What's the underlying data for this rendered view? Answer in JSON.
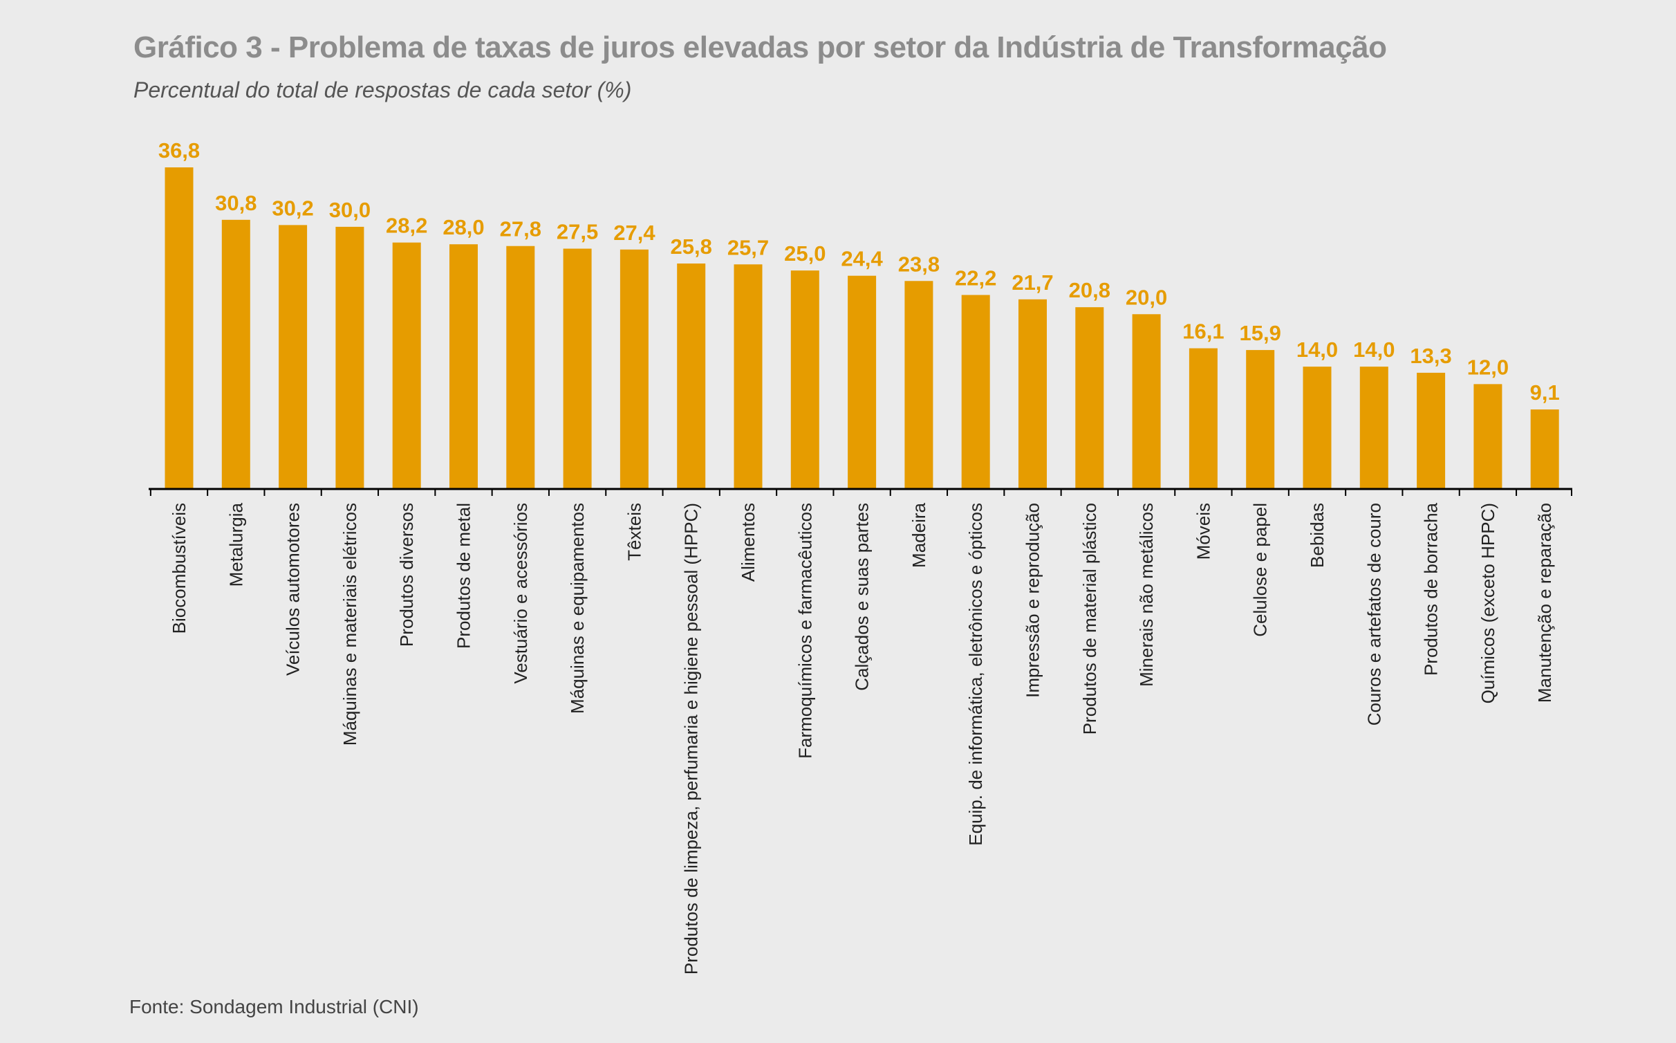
{
  "chart_data": {
    "type": "bar",
    "title": "Gráfico 3 - Problema de taxas de juros elevadas por setor da Indústria de Transformação",
    "subtitle": "Percentual do total de respostas de cada setor (%)",
    "source": "Fonte: Sondagem Industrial (CNI)",
    "xlabel": "",
    "ylabel": "",
    "ylim": [
      0,
      36.8
    ],
    "grid": false,
    "legend": "none",
    "bar_color": "#e69c00",
    "label_color": "#e69c00",
    "axis_color": "#000000",
    "categories": [
      "Biocombustíveis",
      "Metalurgia",
      "Veículos automotores",
      "Máquinas e materiais elétricos",
      "Produtos diversos",
      "Produtos de metal",
      "Vestuário e acessórios",
      "Máquinas e equipamentos",
      "Têxteis",
      "Produtos de limpeza, perfumaria e higiene pessoal (HPPC)",
      "Alimentos",
      "Farmoquímicos e farmacêuticos",
      "Calçados e suas partes",
      "Madeira",
      "Equip. de informática, eletrônicos e ópticos",
      "Impressão e reprodução",
      "Produtos de material plástico",
      "Minerais não metálicos",
      "Móveis",
      "Celulose e papel",
      "Bebidas",
      "Couros e artefatos de couro",
      "Produtos de borracha",
      "Químicos (exceto HPPC)",
      "Manutenção e reparação"
    ],
    "values": [
      36.8,
      30.8,
      30.2,
      30.0,
      28.2,
      28.0,
      27.8,
      27.5,
      27.4,
      25.8,
      25.7,
      25.0,
      24.4,
      23.8,
      22.2,
      21.7,
      20.8,
      20.0,
      16.1,
      15.9,
      14.0,
      14.0,
      13.3,
      12.0,
      9.1
    ],
    "value_labels": [
      "36,8",
      "30,8",
      "30,2",
      "30,0",
      "28,2",
      "28,0",
      "27,8",
      "27,5",
      "27,4",
      "25,8",
      "25,7",
      "25,0",
      "24,4",
      "23,8",
      "22,2",
      "21,7",
      "20,8",
      "20,0",
      "16,1",
      "15,9",
      "14,0",
      "14,0",
      "13,3",
      "12,0",
      "9,1"
    ]
  }
}
